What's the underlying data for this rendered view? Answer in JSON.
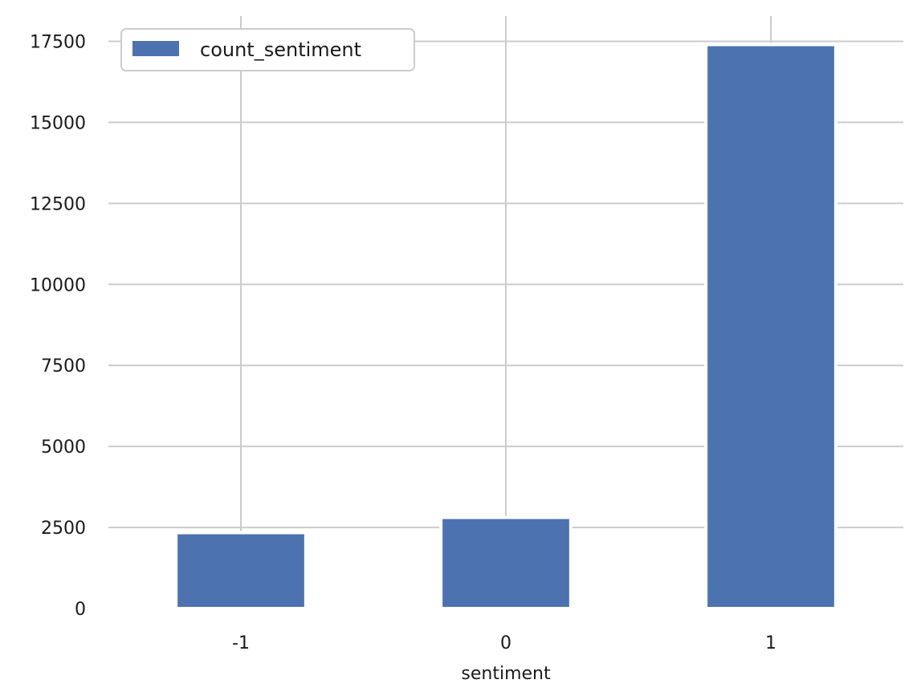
{
  "chart_data": {
    "type": "bar",
    "categories": [
      "-1",
      "0",
      "1"
    ],
    "series": [
      {
        "name": "count_sentiment",
        "values": [
          2340,
          2810,
          17400
        ]
      }
    ],
    "xlabel": "sentiment",
    "ylabel": "",
    "ylim": [
      0,
      18000
    ],
    "yticks": [
      0,
      2500,
      5000,
      7500,
      10000,
      12500,
      15000,
      17500
    ],
    "ytick_labels": [
      "0",
      "2500",
      "5000",
      "7500",
      "10000",
      "12500",
      "15000",
      "17500"
    ],
    "grid": true,
    "legend_position": "top-left",
    "colors": {
      "bar": "#4c72b0",
      "grid": "#cccccc",
      "legend_border": "#cccccc"
    }
  }
}
